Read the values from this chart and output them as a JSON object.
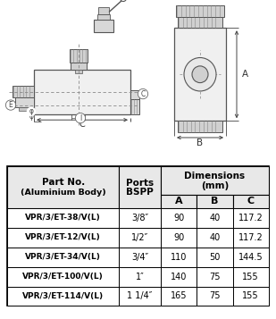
{
  "table_rows": [
    [
      "VPR/3/ET-38/V(L)",
      "3/8″",
      "90",
      "40",
      "117.2"
    ],
    [
      "VPR/3/ET-12/V(L)",
      "1/2″",
      "90",
      "40",
      "117.2"
    ],
    [
      "VPR/3/ET-34/V(L)",
      "3/4″",
      "110",
      "50",
      "144.5"
    ],
    [
      "VPR/3/ET-100/V(L)",
      "1″",
      "140",
      "75",
      "155"
    ],
    [
      "VPR/3/ET-114/V(L)",
      "1 1/4″",
      "165",
      "75",
      "155"
    ]
  ],
  "bg_color": "#ffffff",
  "line_color": "#555555",
  "table_border": "#333333",
  "header_bg": "#e8e8e8",
  "row_bg_odd": "#ffffff",
  "row_bg_even": "#ffffff"
}
